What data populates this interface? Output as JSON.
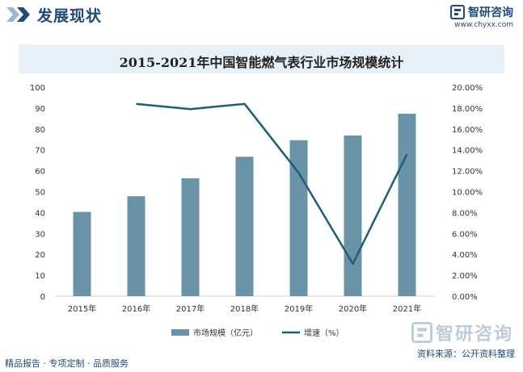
{
  "header": {
    "title": "发展现状"
  },
  "logo": {
    "name": "智研咨询",
    "url": "www.chyxx.com"
  },
  "watermark": {
    "text": "智研咨询"
  },
  "footer": {
    "tagline": "精品报告 · 专项定制 · 品质服务",
    "source": "资料来源：公开资料整理"
  },
  "colors": {
    "bar": "#6a93a8",
    "line": "#1d5e78",
    "brand": "#1f4a7a"
  },
  "chart_data": {
    "type": "bar",
    "title": "2015-2021年中国智能燃气表行业市场规模统计",
    "categories": [
      "2015年",
      "2016年",
      "2017年",
      "2018年",
      "2019年",
      "2020年",
      "2021年"
    ],
    "series": [
      {
        "name": "市场规模（亿元）",
        "type": "bar",
        "axis": "left",
        "values": [
          40.3,
          47.8,
          56.4,
          66.7,
          74.6,
          76.9,
          87.3
        ]
      },
      {
        "name": "增速（%）",
        "type": "line",
        "axis": "right",
        "values": [
          null,
          18.4,
          17.9,
          18.4,
          11.8,
          3.1,
          13.6
        ]
      }
    ],
    "ylim": [
      0,
      100
    ],
    "yticks": [
      0,
      10,
      20,
      30,
      40,
      50,
      60,
      70,
      80,
      90,
      100
    ],
    "y2lim": [
      0,
      20
    ],
    "y2ticks": [
      "0.00%",
      "2.00%",
      "4.00%",
      "6.00%",
      "8.00%",
      "10.00%",
      "12.00%",
      "14.00%",
      "16.00%",
      "18.00%",
      "20.00%"
    ],
    "legend": "bottom",
    "grid": false
  }
}
